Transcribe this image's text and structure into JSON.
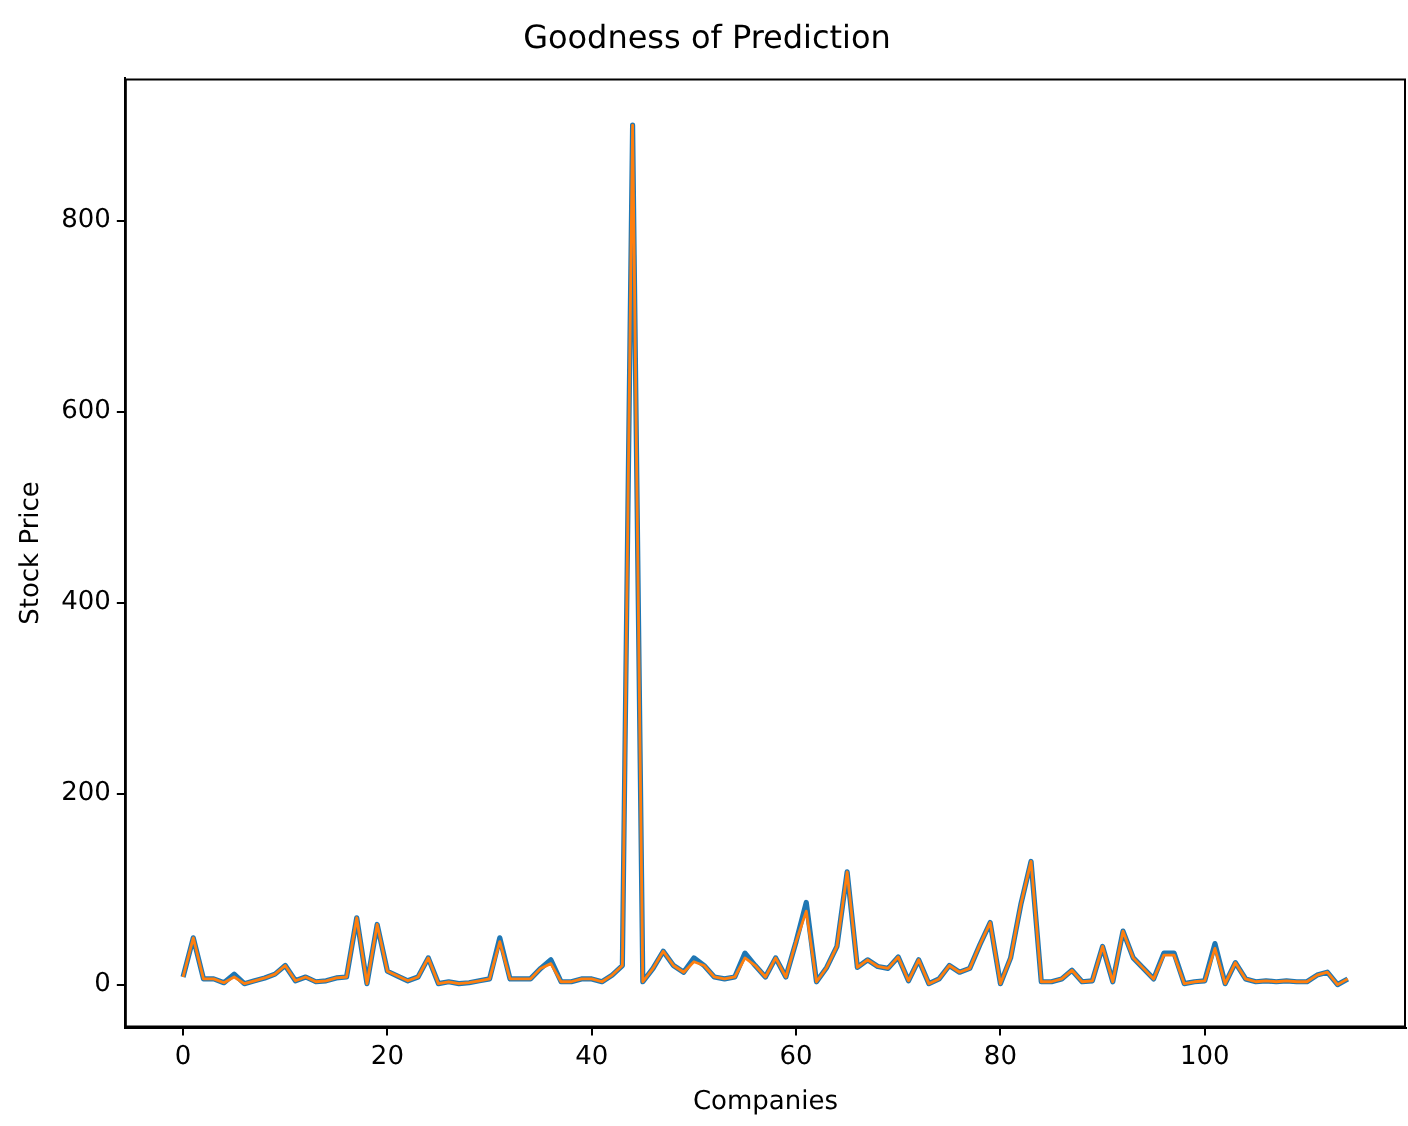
{
  "chart_data": {
    "type": "line",
    "title": "Goodness of Prediction",
    "xlabel": "Companies",
    "ylabel": "Stock Price",
    "x": [
      0,
      1,
      2,
      3,
      4,
      5,
      6,
      7,
      8,
      9,
      10,
      11,
      12,
      13,
      14,
      15,
      16,
      17,
      18,
      19,
      20,
      21,
      22,
      23,
      24,
      25,
      26,
      27,
      28,
      29,
      30,
      31,
      32,
      33,
      34,
      35,
      36,
      37,
      38,
      39,
      40,
      41,
      42,
      43,
      44,
      45,
      46,
      47,
      48,
      49,
      50,
      51,
      52,
      53,
      54,
      55,
      56,
      57,
      58,
      59,
      60,
      61,
      62,
      63,
      64,
      65,
      66,
      67,
      68,
      69,
      70,
      71,
      72,
      73,
      74,
      75,
      76,
      77,
      78,
      79,
      80,
      81,
      82,
      83,
      84,
      85,
      86,
      87,
      88,
      89,
      90,
      91,
      92,
      93,
      94,
      95,
      96,
      97,
      98,
      99,
      100,
      101,
      102,
      103,
      104,
      105,
      106,
      107,
      108,
      109,
      110,
      111,
      112,
      113,
      114
    ],
    "series": [
      {
        "color": "#1f77b4",
        "values": [
          8,
          49,
          6,
          6,
          2,
          11,
          1,
          4,
          7,
          11,
          20,
          4,
          8,
          3,
          4,
          7,
          8,
          70,
          1,
          63,
          14,
          9,
          4,
          8,
          28,
          1,
          3,
          1,
          2,
          4,
          6,
          49,
          6,
          6,
          6,
          17,
          26,
          3,
          3,
          6,
          6,
          3,
          10,
          20,
          900,
          3,
          17,
          35,
          20,
          13,
          28,
          20,
          8,
          6,
          8,
          33,
          20,
          8,
          28,
          8,
          45,
          86,
          3,
          18,
          40,
          118,
          18,
          26,
          19,
          17,
          29,
          4,
          26,
          1,
          6,
          20,
          13,
          17,
          42,
          65,
          1,
          28,
          84,
          129,
          3,
          3,
          6,
          15,
          3,
          4,
          40,
          3,
          56,
          28,
          17,
          6,
          33,
          33,
          1,
          3,
          4,
          43,
          1,
          23,
          6,
          3,
          4,
          3,
          4,
          3,
          3,
          10,
          13,
          0,
          6
        ]
      },
      {
        "color": "#ff7f0e",
        "values": [
          8,
          49,
          6,
          6,
          2,
          8,
          1,
          4,
          7,
          11,
          20,
          4,
          8,
          3,
          4,
          7,
          8,
          70,
          1,
          63,
          14,
          9,
          4,
          8,
          28,
          1,
          3,
          1,
          2,
          4,
          6,
          45,
          6,
          6,
          6,
          17,
          22,
          3,
          3,
          6,
          6,
          3,
          10,
          20,
          900,
          3,
          17,
          35,
          20,
          13,
          24,
          20,
          8,
          6,
          8,
          28,
          20,
          8,
          28,
          8,
          45,
          77,
          3,
          18,
          40,
          118,
          18,
          26,
          19,
          17,
          29,
          4,
          26,
          1,
          6,
          20,
          13,
          17,
          42,
          65,
          1,
          28,
          84,
          129,
          3,
          3,
          6,
          15,
          3,
          4,
          40,
          3,
          56,
          28,
          17,
          6,
          31,
          31,
          1,
          3,
          4,
          38,
          1,
          23,
          6,
          3,
          4,
          3,
          4,
          3,
          3,
          10,
          13,
          0,
          6
        ]
      }
    ],
    "xlim": [
      -5.7,
      119.7
    ],
    "ylim": [
      -45,
      949
    ],
    "xticks": [
      0,
      20,
      40,
      60,
      80,
      100
    ],
    "yticks": [
      0,
      200,
      400,
      600,
      800
    ],
    "grid": false,
    "legend": false,
    "marker": "none",
    "line_style": "solid"
  }
}
